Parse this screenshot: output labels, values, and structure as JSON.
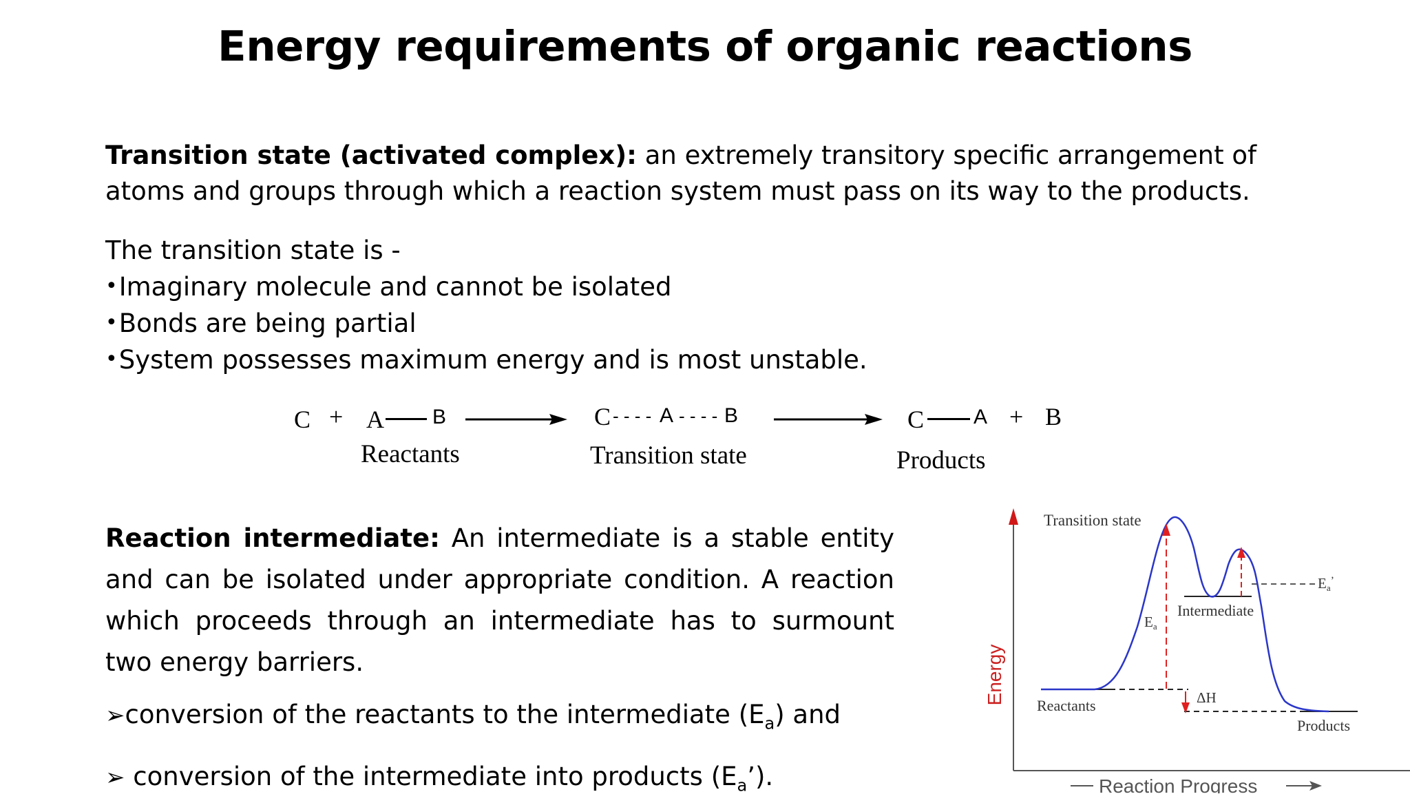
{
  "slide": {
    "title": "Energy requirements of organic reactions"
  },
  "transition_state": {
    "term": "Transition state (activated complex):",
    "definition": " an extremely transitory specific arrangement of atoms and groups through which a reaction system must pass on its way to the products.",
    "intro": "The transition state is -",
    "bullets": [
      "Imaginary molecule and cannot be isolated",
      "Bonds are being partial",
      "System possesses maximum energy and is most unstable."
    ],
    "bullet_symbol": "•"
  },
  "equation": {
    "reactant_c": "C",
    "plus_1": "+",
    "reactant_a": "A",
    "reactant_b": "B",
    "ts_c": "C",
    "ts_dashes_1": "- - - -",
    "ts_a": "A",
    "ts_dashes_2": "- - - -",
    "ts_b": "B",
    "product_c": "C",
    "product_a": "A",
    "plus_2": "+",
    "product_b": "B",
    "label_reactants": "Reactants",
    "label_transition": "Transition state",
    "label_products": "Products"
  },
  "intermediate": {
    "term": "Reaction intermediate:",
    "definition": " An intermediate is a stable entity and can be isolated under appropriate condition. A reaction which proceeds through an intermediate has to surmount two energy barriers.",
    "barrier_1_prefix": "conversion of the reactants to the intermediate (E",
    "barrier_1_sub": "a",
    "barrier_1_suffix": ") and",
    "barrier_2_prefix": " conversion of the intermediate into products (E",
    "barrier_2_sub": "a",
    "barrier_2_suffix": "’).",
    "arrow_symbol": "➢"
  },
  "diagram": {
    "y_axis_label": "Energy",
    "x_axis_label": "Reaction Progress",
    "label_transition_state": "Transition state",
    "label_intermediate": "Intermediate",
    "label_reactants": "Reactants",
    "label_products": "Products",
    "label_ea": "E",
    "label_ea_sub": "a",
    "label_ea_prime": "E",
    "label_ea_prime_sub": "a",
    "label_ea_prime_mark": "’",
    "label_delta_h": "ΔH",
    "colors": {
      "curve": "#2a36c8",
      "arrows": "#e02020",
      "axis": "#555555",
      "energy_label": "#cc2020"
    }
  }
}
